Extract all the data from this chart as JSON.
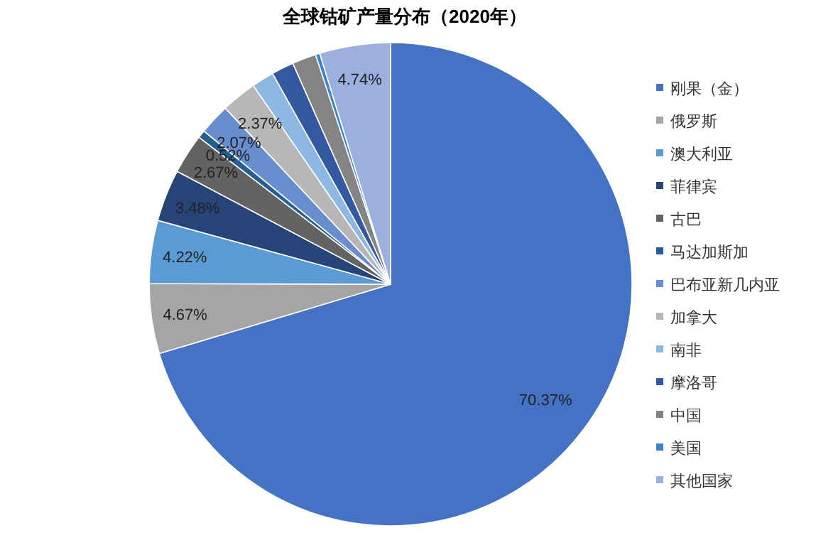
{
  "chart_data": {
    "type": "pie",
    "title": "全球钴矿产量分布（2020年）",
    "categories": [
      "刚果（金）",
      "俄罗斯",
      "澳大利亚",
      "菲律宾",
      "古巴",
      "马达加斯加",
      "巴布亚新几内亚",
      "加拿大",
      "南非",
      "摩洛哥",
      "中国",
      "美国",
      "其他国家"
    ],
    "values": [
      70.37,
      4.67,
      4.22,
      3.48,
      2.67,
      0.52,
      2.07,
      2.37,
      1.5,
      1.5,
      1.6,
      0.29,
      4.74
    ],
    "value_labels": [
      "70.37%",
      "4.67%",
      "4.22%",
      "3.48%",
      "2.67%",
      "0.52%",
      "2.07%",
      "2.37%",
      null,
      null,
      null,
      null,
      "4.74%"
    ],
    "colors": [
      "#4472c4",
      "#a5a5a5",
      "#5b9bd5",
      "#264478",
      "#636363",
      "#255e91",
      "#698ed0",
      "#b7b7b7",
      "#8cb8e3",
      "#335aa1",
      "#848484",
      "#3c83c8",
      "#9dafde"
    ],
    "legend": "right"
  }
}
